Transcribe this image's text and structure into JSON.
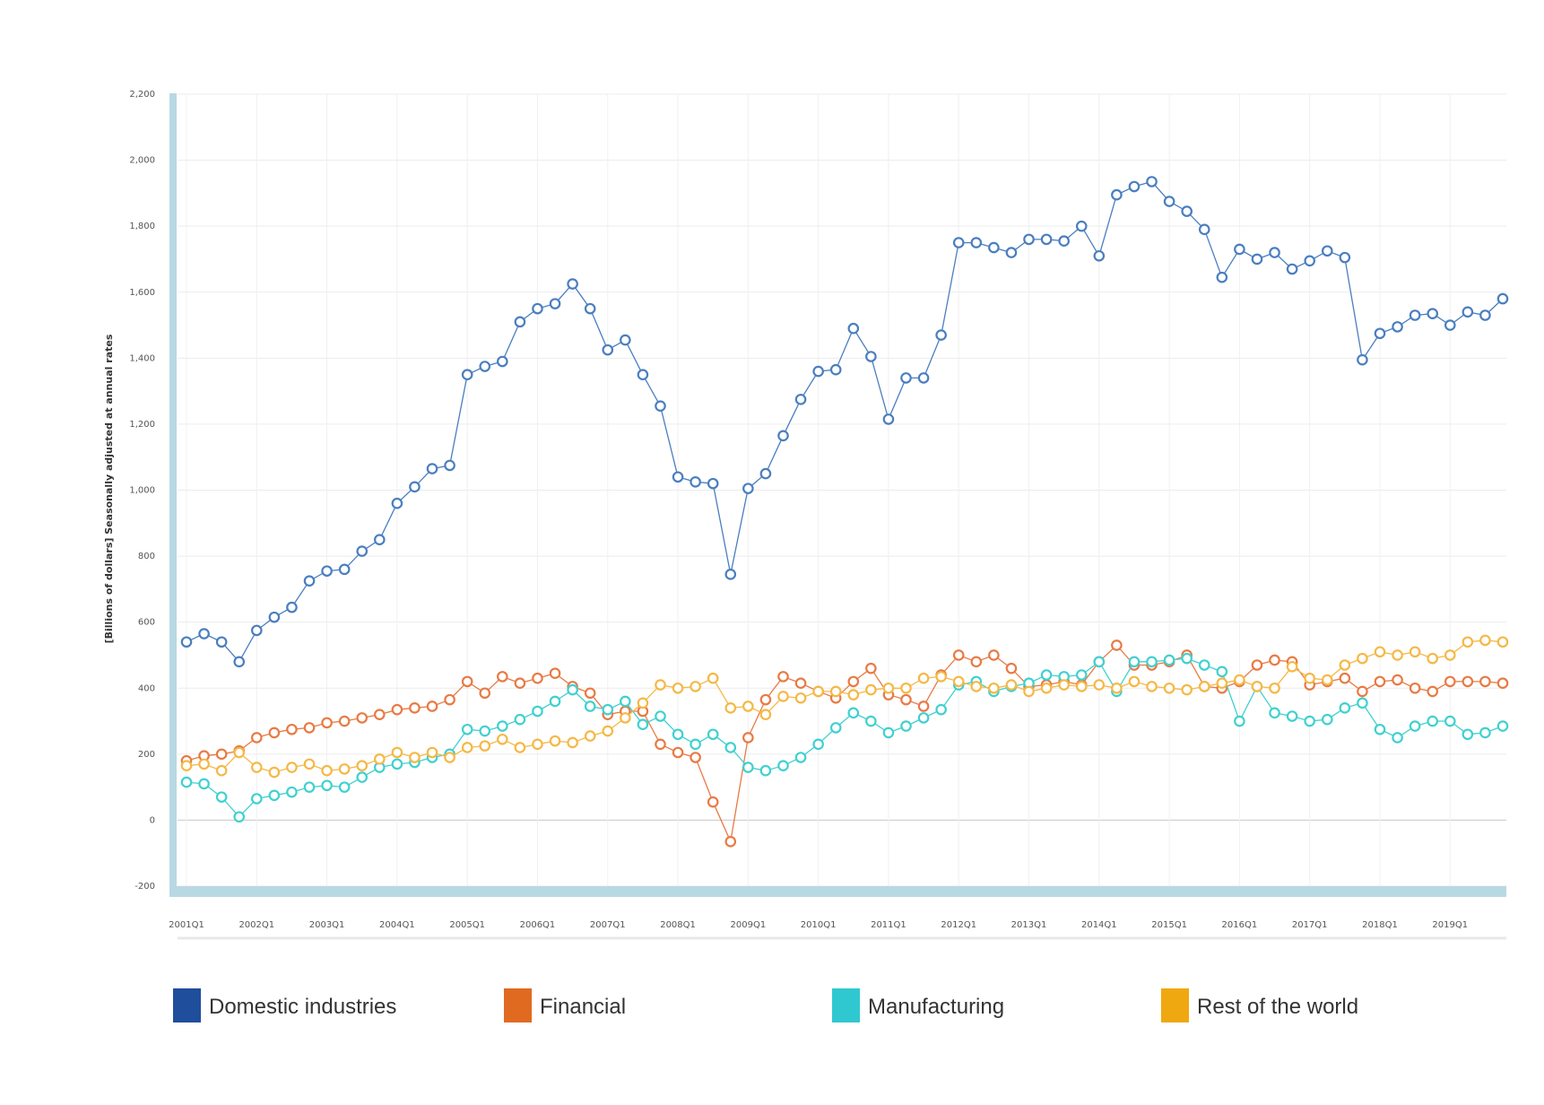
{
  "chart_data": {
    "type": "line",
    "title": "",
    "xlabel": "",
    "ylabel": "[Billions of dollars] Seasonally adjusted at annual rates",
    "ylim": [
      -200,
      2200
    ],
    "yticks": [
      -200,
      0,
      200,
      400,
      600,
      800,
      1000,
      1200,
      1400,
      1600,
      1800,
      2000,
      2200
    ],
    "ytick_labels": [
      "-200",
      "0",
      "200",
      "400",
      "600",
      "800",
      "1,000",
      "1,200",
      "1,400",
      "1,600",
      "1,800",
      "2,000",
      "2,200"
    ],
    "x_tick_labels": [
      "2001Q1",
      "2002Q1",
      "2003Q1",
      "2004Q1",
      "2005Q1",
      "2006Q1",
      "2007Q1",
      "2008Q1",
      "2009Q1",
      "2010Q1",
      "2011Q1",
      "2012Q1",
      "2013Q1",
      "2014Q1",
      "2015Q1",
      "2016Q1",
      "2017Q1",
      "2018Q1",
      "2019Q1"
    ],
    "x_count": 76,
    "legend_position": "bottom",
    "series": [
      {
        "name": "Domestic industries",
        "color": "#4a7ebf",
        "legend_color": "#1f4e9c",
        "values": [
          540,
          565,
          540,
          480,
          575,
          615,
          645,
          725,
          755,
          760,
          815,
          850,
          960,
          1010,
          1065,
          1075,
          1350,
          1375,
          1390,
          1510,
          1550,
          1565,
          1625,
          1550,
          1425,
          1455,
          1350,
          1255,
          1040,
          1025,
          1020,
          745,
          1005,
          1050,
          1165,
          1275,
          1360,
          1365,
          1490,
          1405,
          1215,
          1340,
          1340,
          1470,
          1750,
          1750,
          1735,
          1720,
          1760,
          1760,
          1755,
          1800,
          1710,
          1895,
          1920,
          1935,
          1875,
          1845,
          1790,
          1645,
          1730,
          1700,
          1720,
          1670,
          1695,
          1725,
          1705,
          1395,
          1475,
          1495,
          1530,
          1535,
          1500,
          1540,
          1530,
          1580
        ]
      },
      {
        "name": "Financial",
        "color": "#e87a44",
        "legend_color": "#e06a20",
        "values": [
          180,
          195,
          200,
          210,
          250,
          265,
          275,
          280,
          295,
          300,
          310,
          320,
          335,
          340,
          345,
          365,
          420,
          385,
          435,
          415,
          430,
          445,
          405,
          385,
          320,
          330,
          330,
          230,
          205,
          190,
          55,
          -65,
          250,
          365,
          435,
          415,
          390,
          370,
          420,
          460,
          380,
          365,
          345,
          440,
          500,
          480,
          500,
          460,
          405,
          410,
          420,
          410,
          480,
          530,
          470,
          470,
          480,
          500,
          405,
          400,
          420,
          470,
          485,
          480,
          410,
          420,
          430,
          390,
          420,
          425,
          400,
          390,
          420,
          420,
          420,
          415
        ]
      },
      {
        "name": "Manufacturing",
        "color": "#40d0d0",
        "legend_color": "#30c8d0",
        "values": [
          115,
          110,
          70,
          10,
          65,
          75,
          85,
          100,
          105,
          100,
          130,
          160,
          170,
          175,
          190,
          200,
          275,
          270,
          285,
          305,
          330,
          360,
          395,
          345,
          335,
          360,
          290,
          315,
          260,
          230,
          260,
          220,
          160,
          150,
          165,
          190,
          230,
          280,
          325,
          300,
          265,
          285,
          310,
          335,
          410,
          420,
          390,
          405,
          415,
          440,
          435,
          440,
          480,
          390,
          480,
          480,
          485,
          490,
          470,
          450,
          300,
          405,
          325,
          315,
          300,
          305,
          340,
          355,
          275,
          250,
          285,
          300,
          300,
          260,
          265,
          285
        ]
      },
      {
        "name": "Rest of the world",
        "color": "#f5b845",
        "legend_color": "#f0a810",
        "values": [
          165,
          170,
          150,
          205,
          160,
          145,
          160,
          170,
          150,
          155,
          165,
          185,
          205,
          190,
          205,
          190,
          220,
          225,
          245,
          220,
          230,
          240,
          235,
          255,
          270,
          310,
          355,
          410,
          400,
          405,
          430,
          340,
          345,
          320,
          375,
          370,
          390,
          390,
          380,
          395,
          400,
          400,
          430,
          435,
          420,
          405,
          400,
          410,
          390,
          400,
          410,
          405,
          410,
          400,
          420,
          405,
          400,
          395,
          405,
          415,
          425,
          405,
          400,
          465,
          430,
          425,
          470,
          490,
          510,
          500,
          510,
          490,
          500,
          540,
          545,
          540
        ]
      }
    ]
  }
}
